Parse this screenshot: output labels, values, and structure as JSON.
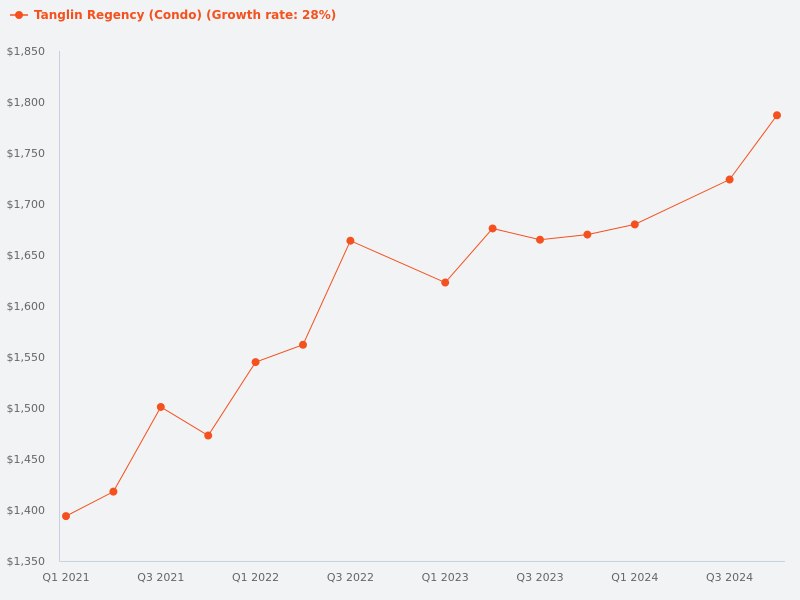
{
  "chart_data": {
    "type": "line",
    "title": "",
    "legend": [
      {
        "label": "Tanglin Regency (Condo) (Growth rate: 28%)",
        "color": "#f4511e"
      }
    ],
    "legend_position": "top-left",
    "xlabel": "",
    "ylabel": "",
    "ylim": [
      1350,
      1850
    ],
    "yticks": [
      "$1,350",
      "$1,400",
      "$1,450",
      "$1,500",
      "$1,550",
      "$1,600",
      "$1,650",
      "$1,700",
      "$1,750",
      "$1,800",
      "$1,850"
    ],
    "ytick_values": [
      1350,
      1400,
      1450,
      1500,
      1550,
      1600,
      1650,
      1700,
      1750,
      1800,
      1850
    ],
    "xticks": [
      "Q1 2021",
      "Q3 2021",
      "Q1 2022",
      "Q3 2022",
      "Q1 2023",
      "Q3 2023",
      "Q1 2024",
      "Q3 2024"
    ],
    "xtick_indices": [
      0,
      2,
      4,
      6,
      8,
      10,
      12,
      14
    ],
    "grid": false,
    "series": [
      {
        "name": "Tanglin Regency (Condo) (Growth rate: 28%)",
        "color": "#f4511e",
        "points": [
          {
            "x": "Q1 2021",
            "i": 0,
            "y": 1394
          },
          {
            "x": "Q2 2021",
            "i": 1,
            "y": 1418
          },
          {
            "x": "Q3 2021",
            "i": 2,
            "y": 1501
          },
          {
            "x": "Q4 2021",
            "i": 3,
            "y": 1473
          },
          {
            "x": "Q1 2022",
            "i": 4,
            "y": 1545
          },
          {
            "x": "Q2 2022",
            "i": 5,
            "y": 1562
          },
          {
            "x": "Q3 2022",
            "i": 6,
            "y": 1664
          },
          {
            "x": "Q1 2023",
            "i": 8,
            "y": 1623
          },
          {
            "x": "Q2 2023",
            "i": 9,
            "y": 1676
          },
          {
            "x": "Q3 2023",
            "i": 10,
            "y": 1665
          },
          {
            "x": "Q4 2023",
            "i": 11,
            "y": 1670
          },
          {
            "x": "Q1 2024",
            "i": 12,
            "y": 1680
          },
          {
            "x": "Q3 2024",
            "i": 14,
            "y": 1724
          },
          {
            "x": "Q4 2024",
            "i": 15,
            "y": 1787
          }
        ]
      }
    ]
  },
  "legend": {
    "label": "Tanglin Regency (Condo) (Growth rate: 28%)"
  },
  "colors": {
    "series": "#f4511e",
    "axis": "#c5d0e0",
    "tick_text": "#666666",
    "background": "#f2f3f5"
  }
}
